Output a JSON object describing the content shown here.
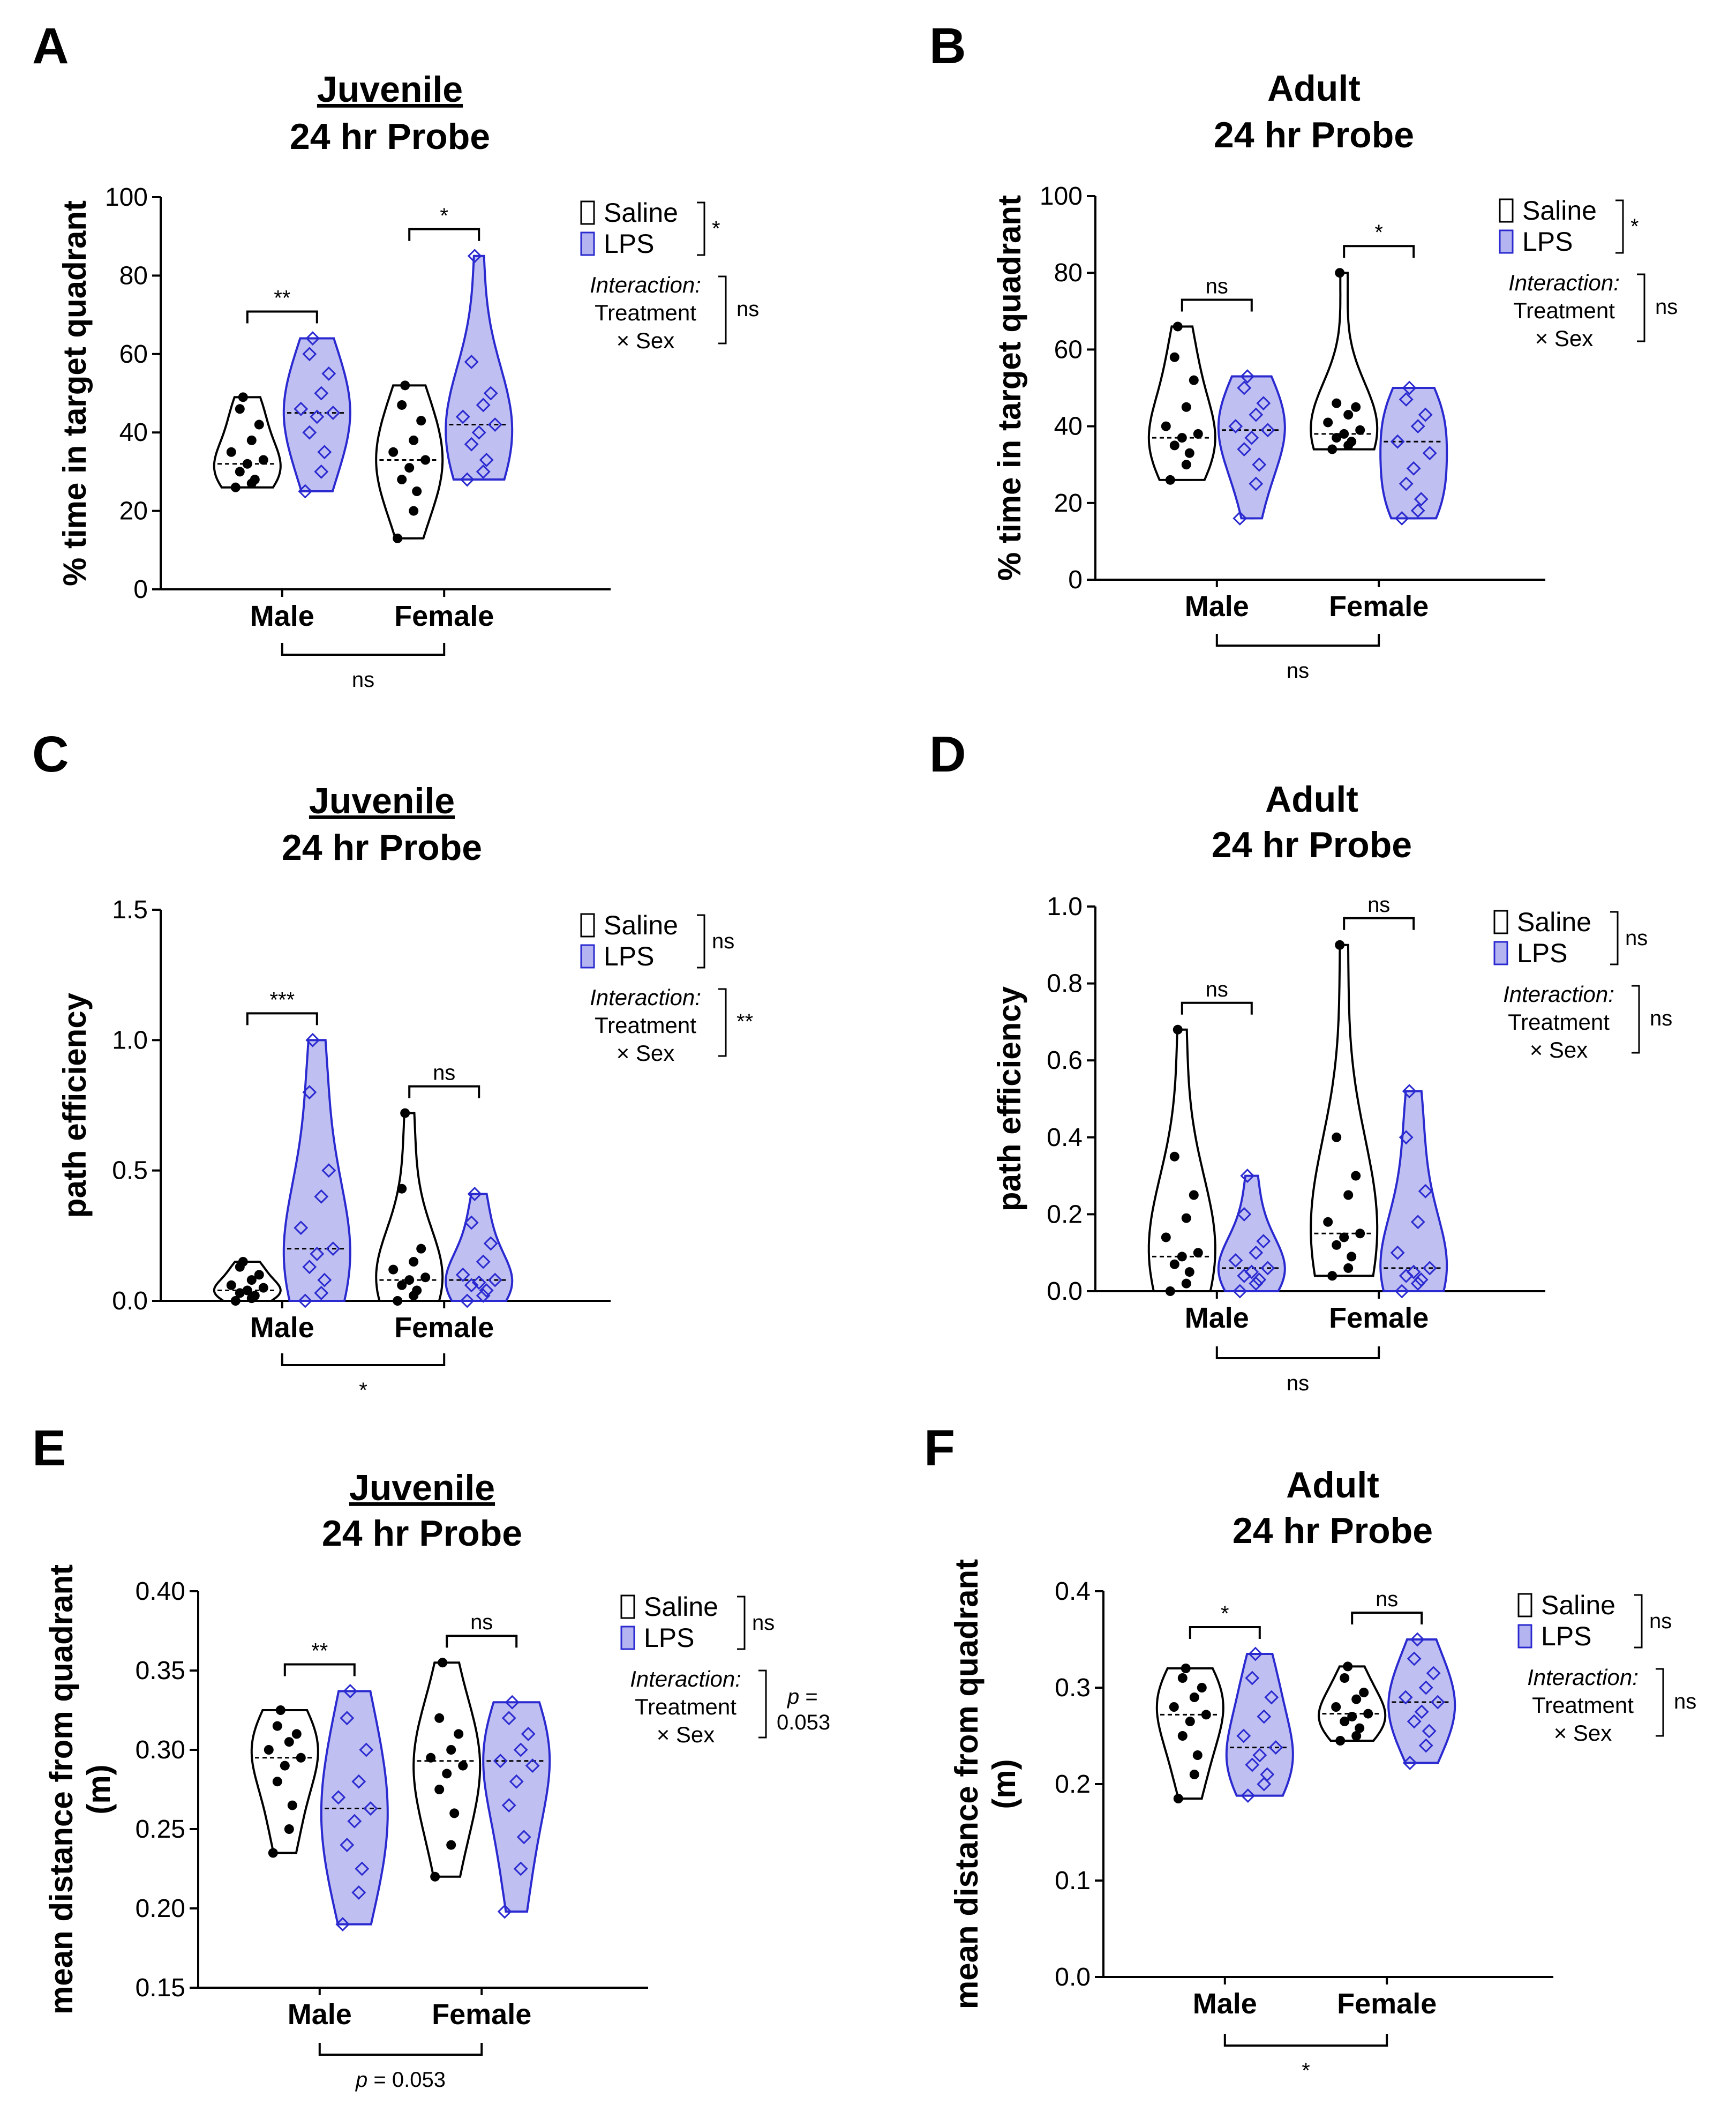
{
  "colors": {
    "saline_fill": "#ffffff",
    "lps_fill": "#b4b4f0",
    "lps_stroke": "#2a2ad0",
    "axis": "#000000"
  },
  "legend": {
    "saline": "Saline",
    "lps": "LPS",
    "interaction_title": "Interaction:",
    "interaction_line2": "Treatment",
    "interaction_line3": "× Sex"
  },
  "chart_data": [
    {
      "panel": "A",
      "type": "violin",
      "title": "Juvenile",
      "subtitle": "24 hr Probe",
      "ylabel": "% time in target quadrant",
      "ylabel2": "",
      "ylim": [
        0,
        100
      ],
      "yticks": [
        "0",
        "20",
        "40",
        "60",
        "80",
        "100"
      ],
      "ytick_values": [
        0,
        20,
        40,
        60,
        80,
        100
      ],
      "categories": [
        "Male",
        "Female"
      ],
      "series": [
        {
          "name": "Saline",
          "min": [
            26,
            13
          ],
          "max": [
            49,
            52
          ],
          "median": [
            32,
            33
          ],
          "points": [
            [
              26,
              27,
              28,
              30,
              32,
              33,
              35,
              38,
              42,
              46,
              49
            ],
            [
              13,
              20,
              25,
              28,
              31,
              33,
              35,
              38,
              43,
              47,
              52
            ]
          ]
        },
        {
          "name": "LPS",
          "min": [
            25,
            28
          ],
          "max": [
            64,
            85
          ],
          "median": [
            45,
            42
          ],
          "points": [
            [
              25,
              30,
              35,
              40,
              44,
              45,
              46,
              50,
              55,
              60,
              64
            ],
            [
              28,
              30,
              33,
              37,
              40,
              42,
              44,
              47,
              50,
              58,
              85
            ]
          ]
        }
      ],
      "pair_sig": [
        "**",
        "*"
      ],
      "sex_sig": "ns",
      "sex_sig_prefix": "",
      "treatment_sig": "*",
      "interaction_sig": "ns",
      "interaction_sig2": ""
    },
    {
      "panel": "B",
      "type": "violin",
      "title": "Adult",
      "subtitle": "24 hr Probe",
      "ylabel": "% time in target quadrant",
      "ylabel2": "",
      "ylim": [
        0,
        100
      ],
      "yticks": [
        "0",
        "20",
        "40",
        "60",
        "80",
        "100"
      ],
      "ytick_values": [
        0,
        20,
        40,
        60,
        80,
        100
      ],
      "categories": [
        "Male",
        "Female"
      ],
      "series": [
        {
          "name": "Saline",
          "min": [
            26,
            34
          ],
          "max": [
            66,
            80
          ],
          "median": [
            37,
            38
          ],
          "points": [
            [
              26,
              30,
              33,
              35,
              37,
              38,
              40,
              45,
              52,
              58,
              66
            ],
            [
              34,
              35,
              36,
              37,
              38,
              39,
              41,
              43,
              45,
              46,
              80
            ]
          ]
        },
        {
          "name": "LPS",
          "min": [
            16,
            16
          ],
          "max": [
            53,
            50
          ],
          "median": [
            39,
            36
          ],
          "points": [
            [
              16,
              25,
              30,
              34,
              37,
              39,
              40,
              43,
              46,
              50,
              53
            ],
            [
              16,
              18,
              21,
              25,
              29,
              33,
              36,
              40,
              43,
              47,
              50
            ]
          ]
        }
      ],
      "pair_sig": [
        "ns",
        "*"
      ],
      "sex_sig": "ns",
      "sex_sig_prefix": "",
      "treatment_sig": "*",
      "interaction_sig": "ns",
      "interaction_sig2": ""
    },
    {
      "panel": "C",
      "type": "violin",
      "title": "Juvenile",
      "subtitle": "24 hr Probe",
      "ylabel": "path efficiency",
      "ylabel2": "",
      "ylim": [
        0,
        1.5
      ],
      "yticks": [
        "0.0",
        "0.5",
        "1.0",
        "1.5"
      ],
      "ytick_values": [
        0,
        0.5,
        1.0,
        1.5
      ],
      "categories": [
        "Male",
        "Female"
      ],
      "series": [
        {
          "name": "Saline",
          "min": [
            0.0,
            0.0
          ],
          "max": [
            0.15,
            0.72
          ],
          "median": [
            0.04,
            0.08
          ],
          "points": [
            [
              0.0,
              0.01,
              0.02,
              0.03,
              0.04,
              0.05,
              0.06,
              0.08,
              0.1,
              0.13,
              0.15
            ],
            [
              0.0,
              0.02,
              0.04,
              0.06,
              0.08,
              0.09,
              0.12,
              0.15,
              0.2,
              0.43,
              0.72
            ]
          ]
        },
        {
          "name": "LPS",
          "min": [
            0.0,
            0.0
          ],
          "max": [
            1.0,
            0.41
          ],
          "median": [
            0.2,
            0.08
          ],
          "points": [
            [
              0.0,
              0.03,
              0.08,
              0.13,
              0.18,
              0.2,
              0.28,
              0.4,
              0.5,
              0.8,
              1.0
            ],
            [
              0.0,
              0.02,
              0.04,
              0.06,
              0.07,
              0.08,
              0.1,
              0.15,
              0.22,
              0.3,
              0.41
            ]
          ]
        }
      ],
      "pair_sig": [
        "***",
        "ns"
      ],
      "sex_sig": "*",
      "sex_sig_prefix": "",
      "treatment_sig": "ns",
      "interaction_sig": "**",
      "interaction_sig2": ""
    },
    {
      "panel": "D",
      "type": "violin",
      "title": "Adult",
      "subtitle": "24 hr Probe",
      "ylabel": "path efficiency",
      "ylabel2": "",
      "ylim": [
        0,
        1.0
      ],
      "yticks": [
        "0.0",
        "0.2",
        "0.4",
        "0.6",
        "0.8",
        "1.0"
      ],
      "ytick_values": [
        0,
        0.2,
        0.4,
        0.6,
        0.8,
        1.0
      ],
      "categories": [
        "Male",
        "Female"
      ],
      "series": [
        {
          "name": "Saline",
          "min": [
            0.0,
            0.04
          ],
          "max": [
            0.68,
            0.9
          ],
          "median": [
            0.09,
            0.15
          ],
          "points": [
            [
              0.0,
              0.02,
              0.05,
              0.07,
              0.09,
              0.1,
              0.14,
              0.19,
              0.25,
              0.35,
              0.68
            ],
            [
              0.04,
              0.06,
              0.09,
              0.12,
              0.14,
              0.15,
              0.18,
              0.25,
              0.3,
              0.4,
              0.9
            ]
          ]
        },
        {
          "name": "LPS",
          "min": [
            0.0,
            0.0
          ],
          "max": [
            0.3,
            0.52
          ],
          "median": [
            0.06,
            0.06
          ],
          "points": [
            [
              0.0,
              0.02,
              0.03,
              0.04,
              0.05,
              0.06,
              0.08,
              0.1,
              0.13,
              0.2,
              0.3
            ],
            [
              0.0,
              0.02,
              0.03,
              0.04,
              0.05,
              0.06,
              0.1,
              0.18,
              0.26,
              0.4,
              0.52
            ]
          ]
        }
      ],
      "pair_sig": [
        "ns",
        "ns"
      ],
      "sex_sig": "ns",
      "sex_sig_prefix": "",
      "treatment_sig": "ns",
      "interaction_sig": "ns",
      "interaction_sig2": ""
    },
    {
      "panel": "E",
      "type": "violin",
      "title": "Juvenile",
      "subtitle": "24 hr Probe",
      "ylabel": "mean distance from quadrant",
      "ylabel2": "(m)",
      "ylim": [
        0.15,
        0.4
      ],
      "yticks": [
        "0.15",
        "0.20",
        "0.25",
        "0.30",
        "0.35",
        "0.40"
      ],
      "ytick_values": [
        0.15,
        0.2,
        0.25,
        0.3,
        0.35,
        0.4
      ],
      "categories": [
        "Male",
        "Female"
      ],
      "series": [
        {
          "name": "Saline",
          "min": [
            0.235,
            0.22
          ],
          "max": [
            0.325,
            0.355
          ],
          "median": [
            0.295,
            0.293
          ],
          "points": [
            [
              0.235,
              0.25,
              0.265,
              0.28,
              0.29,
              0.295,
              0.3,
              0.305,
              0.31,
              0.315,
              0.325
            ],
            [
              0.22,
              0.24,
              0.26,
              0.275,
              0.285,
              0.29,
              0.295,
              0.3,
              0.31,
              0.32,
              0.355
            ]
          ]
        },
        {
          "name": "LPS",
          "min": [
            0.19,
            0.198
          ],
          "max": [
            0.337,
            0.33
          ],
          "median": [
            0.263,
            0.293
          ],
          "points": [
            [
              0.19,
              0.21,
              0.225,
              0.24,
              0.255,
              0.263,
              0.27,
              0.28,
              0.3,
              0.32,
              0.337
            ],
            [
              0.198,
              0.225,
              0.245,
              0.265,
              0.28,
              0.29,
              0.293,
              0.3,
              0.31,
              0.32,
              0.33
            ]
          ]
        }
      ],
      "pair_sig": [
        "**",
        "ns"
      ],
      "sex_sig": "= 0.053",
      "sex_sig_prefix": "p",
      "treatment_sig": "ns",
      "interaction_sig": "p =",
      "interaction_sig2": "0.053"
    },
    {
      "panel": "F",
      "type": "violin",
      "title": "Adult",
      "subtitle": "24 hr Probe",
      "ylabel": "mean distance from quadrant",
      "ylabel2": "(m)",
      "ylim": [
        0,
        0.4
      ],
      "yticks": [
        "0.0",
        "0.1",
        "0.2",
        "0.3",
        "0.4"
      ],
      "ytick_values": [
        0,
        0.1,
        0.2,
        0.3,
        0.4
      ],
      "categories": [
        "Male",
        "Female"
      ],
      "series": [
        {
          "name": "Saline",
          "min": [
            0.185,
            0.245
          ],
          "max": [
            0.32,
            0.322
          ],
          "median": [
            0.272,
            0.273
          ],
          "points": [
            [
              0.185,
              0.21,
              0.23,
              0.25,
              0.265,
              0.272,
              0.28,
              0.29,
              0.3,
              0.31,
              0.32
            ],
            [
              0.245,
              0.25,
              0.258,
              0.265,
              0.27,
              0.273,
              0.28,
              0.288,
              0.295,
              0.31,
              0.322
            ]
          ]
        },
        {
          "name": "LPS",
          "min": [
            0.188,
            0.222
          ],
          "max": [
            0.335,
            0.35
          ],
          "median": [
            0.238,
            0.285
          ],
          "points": [
            [
              0.188,
              0.2,
              0.21,
              0.22,
              0.23,
              0.238,
              0.25,
              0.27,
              0.29,
              0.31,
              0.335
            ],
            [
              0.222,
              0.24,
              0.255,
              0.265,
              0.275,
              0.285,
              0.29,
              0.3,
              0.315,
              0.33,
              0.35
            ]
          ]
        }
      ],
      "pair_sig": [
        "*",
        "ns"
      ],
      "sex_sig": "*",
      "sex_sig_prefix": "",
      "treatment_sig": "ns",
      "interaction_sig": "ns",
      "interaction_sig2": ""
    }
  ]
}
